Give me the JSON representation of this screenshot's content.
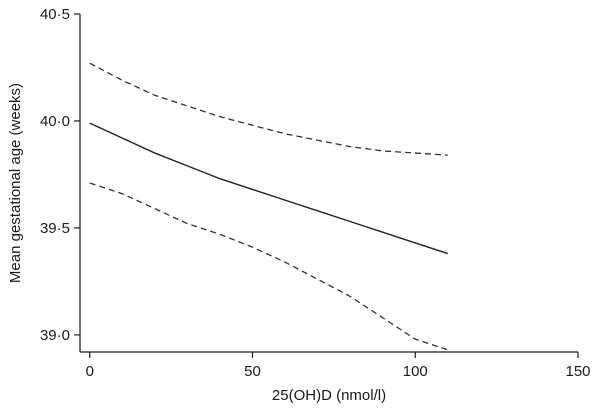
{
  "chart_data": {
    "type": "line",
    "title": "",
    "xlabel": "25(OH)D (nmol/l)",
    "ylabel": "Mean gestational age (weeks)",
    "xlim": [
      -3,
      150
    ],
    "ylim": [
      38.92,
      40.5
    ],
    "grid": false,
    "legend": "none",
    "x_ticks": [
      {
        "value": 0,
        "label": "0"
      },
      {
        "value": 50,
        "label": "50"
      },
      {
        "value": 100,
        "label": "100"
      },
      {
        "value": 150,
        "label": "150"
      }
    ],
    "y_ticks": [
      {
        "value": 39.0,
        "label": "39·0"
      },
      {
        "value": 39.5,
        "label": "39·5"
      },
      {
        "value": 40.0,
        "label": "40·0"
      },
      {
        "value": 40.5,
        "label": "40·5"
      }
    ],
    "series": [
      {
        "style": "solid",
        "color": "#222222",
        "x": [
          0,
          10,
          20,
          30,
          40,
          50,
          60,
          70,
          80,
          90,
          100,
          110
        ],
        "y": [
          39.99,
          39.92,
          39.85,
          39.79,
          39.73,
          39.68,
          39.63,
          39.58,
          39.53,
          39.48,
          39.43,
          39.38
        ]
      },
      {
        "style": "dashed",
        "color": "#333333",
        "x": [
          0,
          10,
          20,
          30,
          40,
          50,
          60,
          70,
          80,
          90,
          100,
          110
        ],
        "y": [
          40.27,
          40.19,
          40.12,
          40.07,
          40.02,
          39.98,
          39.94,
          39.91,
          39.88,
          39.86,
          39.85,
          39.84
        ]
      },
      {
        "style": "dashed",
        "color": "#333333",
        "x": [
          0,
          10,
          20,
          30,
          40,
          50,
          60,
          70,
          80,
          90,
          100,
          110
        ],
        "y": [
          39.71,
          39.66,
          39.59,
          39.52,
          39.47,
          39.41,
          39.34,
          39.26,
          39.18,
          39.08,
          38.98,
          38.93
        ]
      }
    ]
  }
}
